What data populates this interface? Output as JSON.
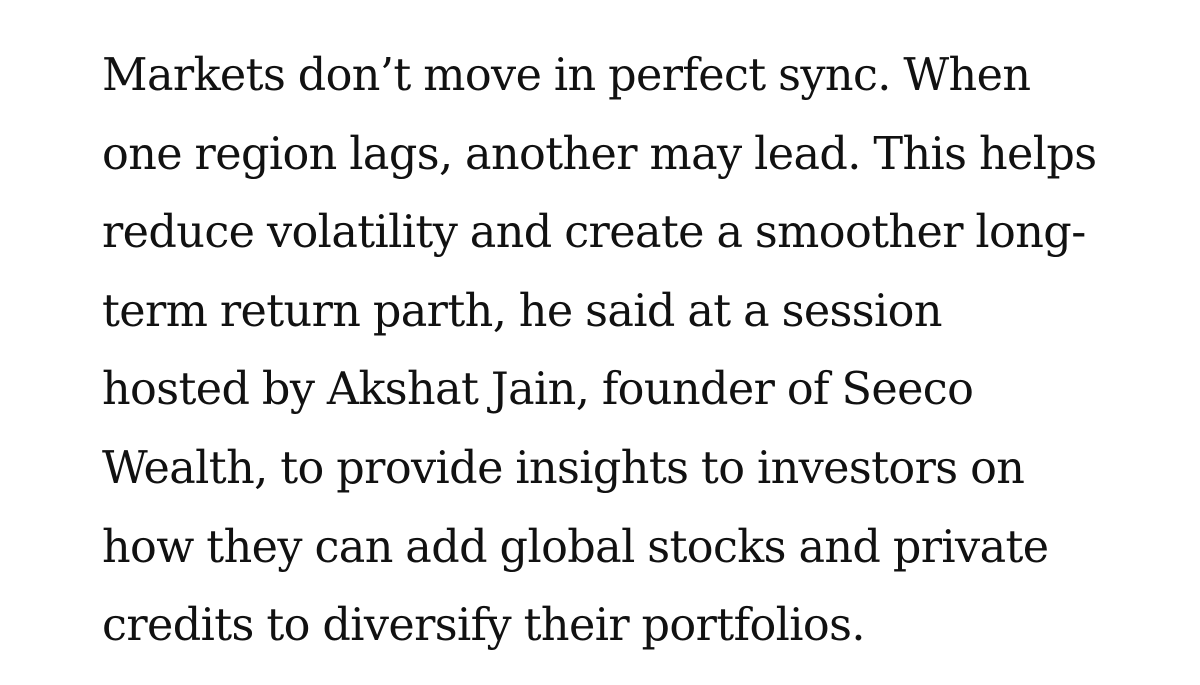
{
  "article": {
    "paragraph_lines": [
      "Markets don’t move in perfect sync. When",
      "one region lags, another may lead. This helps",
      "reduce volatility and create a smoother long-",
      "term return parth, he said at a session",
      "hosted by Akshat Jain, founder of Seeco",
      "Wealth, to provide insights to investors on",
      "how they can add global stocks and private",
      "credits to diversify their portfolios."
    ]
  }
}
